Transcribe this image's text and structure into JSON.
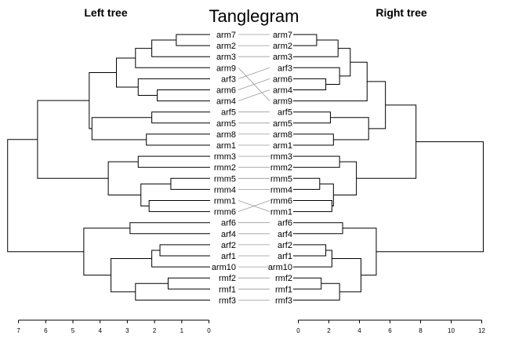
{
  "title": "Tanglegram",
  "left_title": "Left tree",
  "right_title": "Right tree",
  "left_leaves": [
    "arm7",
    "arm2",
    "arm3",
    "arm9",
    "arf3",
    "arm6",
    "arm4",
    "arf5",
    "arm5",
    "arm8",
    "arm1",
    "rmm3",
    "rmm2",
    "rmm5",
    "rmm4",
    "rmm1",
    "rmm6",
    "arf6",
    "arf4",
    "arf2",
    "arf1",
    "arm10",
    "rmf2",
    "rmf1",
    "rmf3"
  ],
  "right_leaves": [
    "arm7",
    "arm2",
    "arm3",
    "arf3",
    "arm6",
    "arm4",
    "arm9",
    "arf5",
    "arm5",
    "arm8",
    "arm1",
    "rmm3",
    "rmm2",
    "rmm5",
    "rmm4",
    "rmm6",
    "rmm1",
    "arf6",
    "arf4",
    "arf2",
    "arf1",
    "arm10",
    "rmf2",
    "rmf1",
    "rmf3"
  ],
  "left_axis": {
    "ticks": [
      "7",
      "6",
      "5",
      "4",
      "3",
      "2",
      "1",
      "0"
    ]
  },
  "right_axis": {
    "ticks": [
      "0",
      "2",
      "4",
      "6",
      "8",
      "10",
      "12"
    ]
  }
}
